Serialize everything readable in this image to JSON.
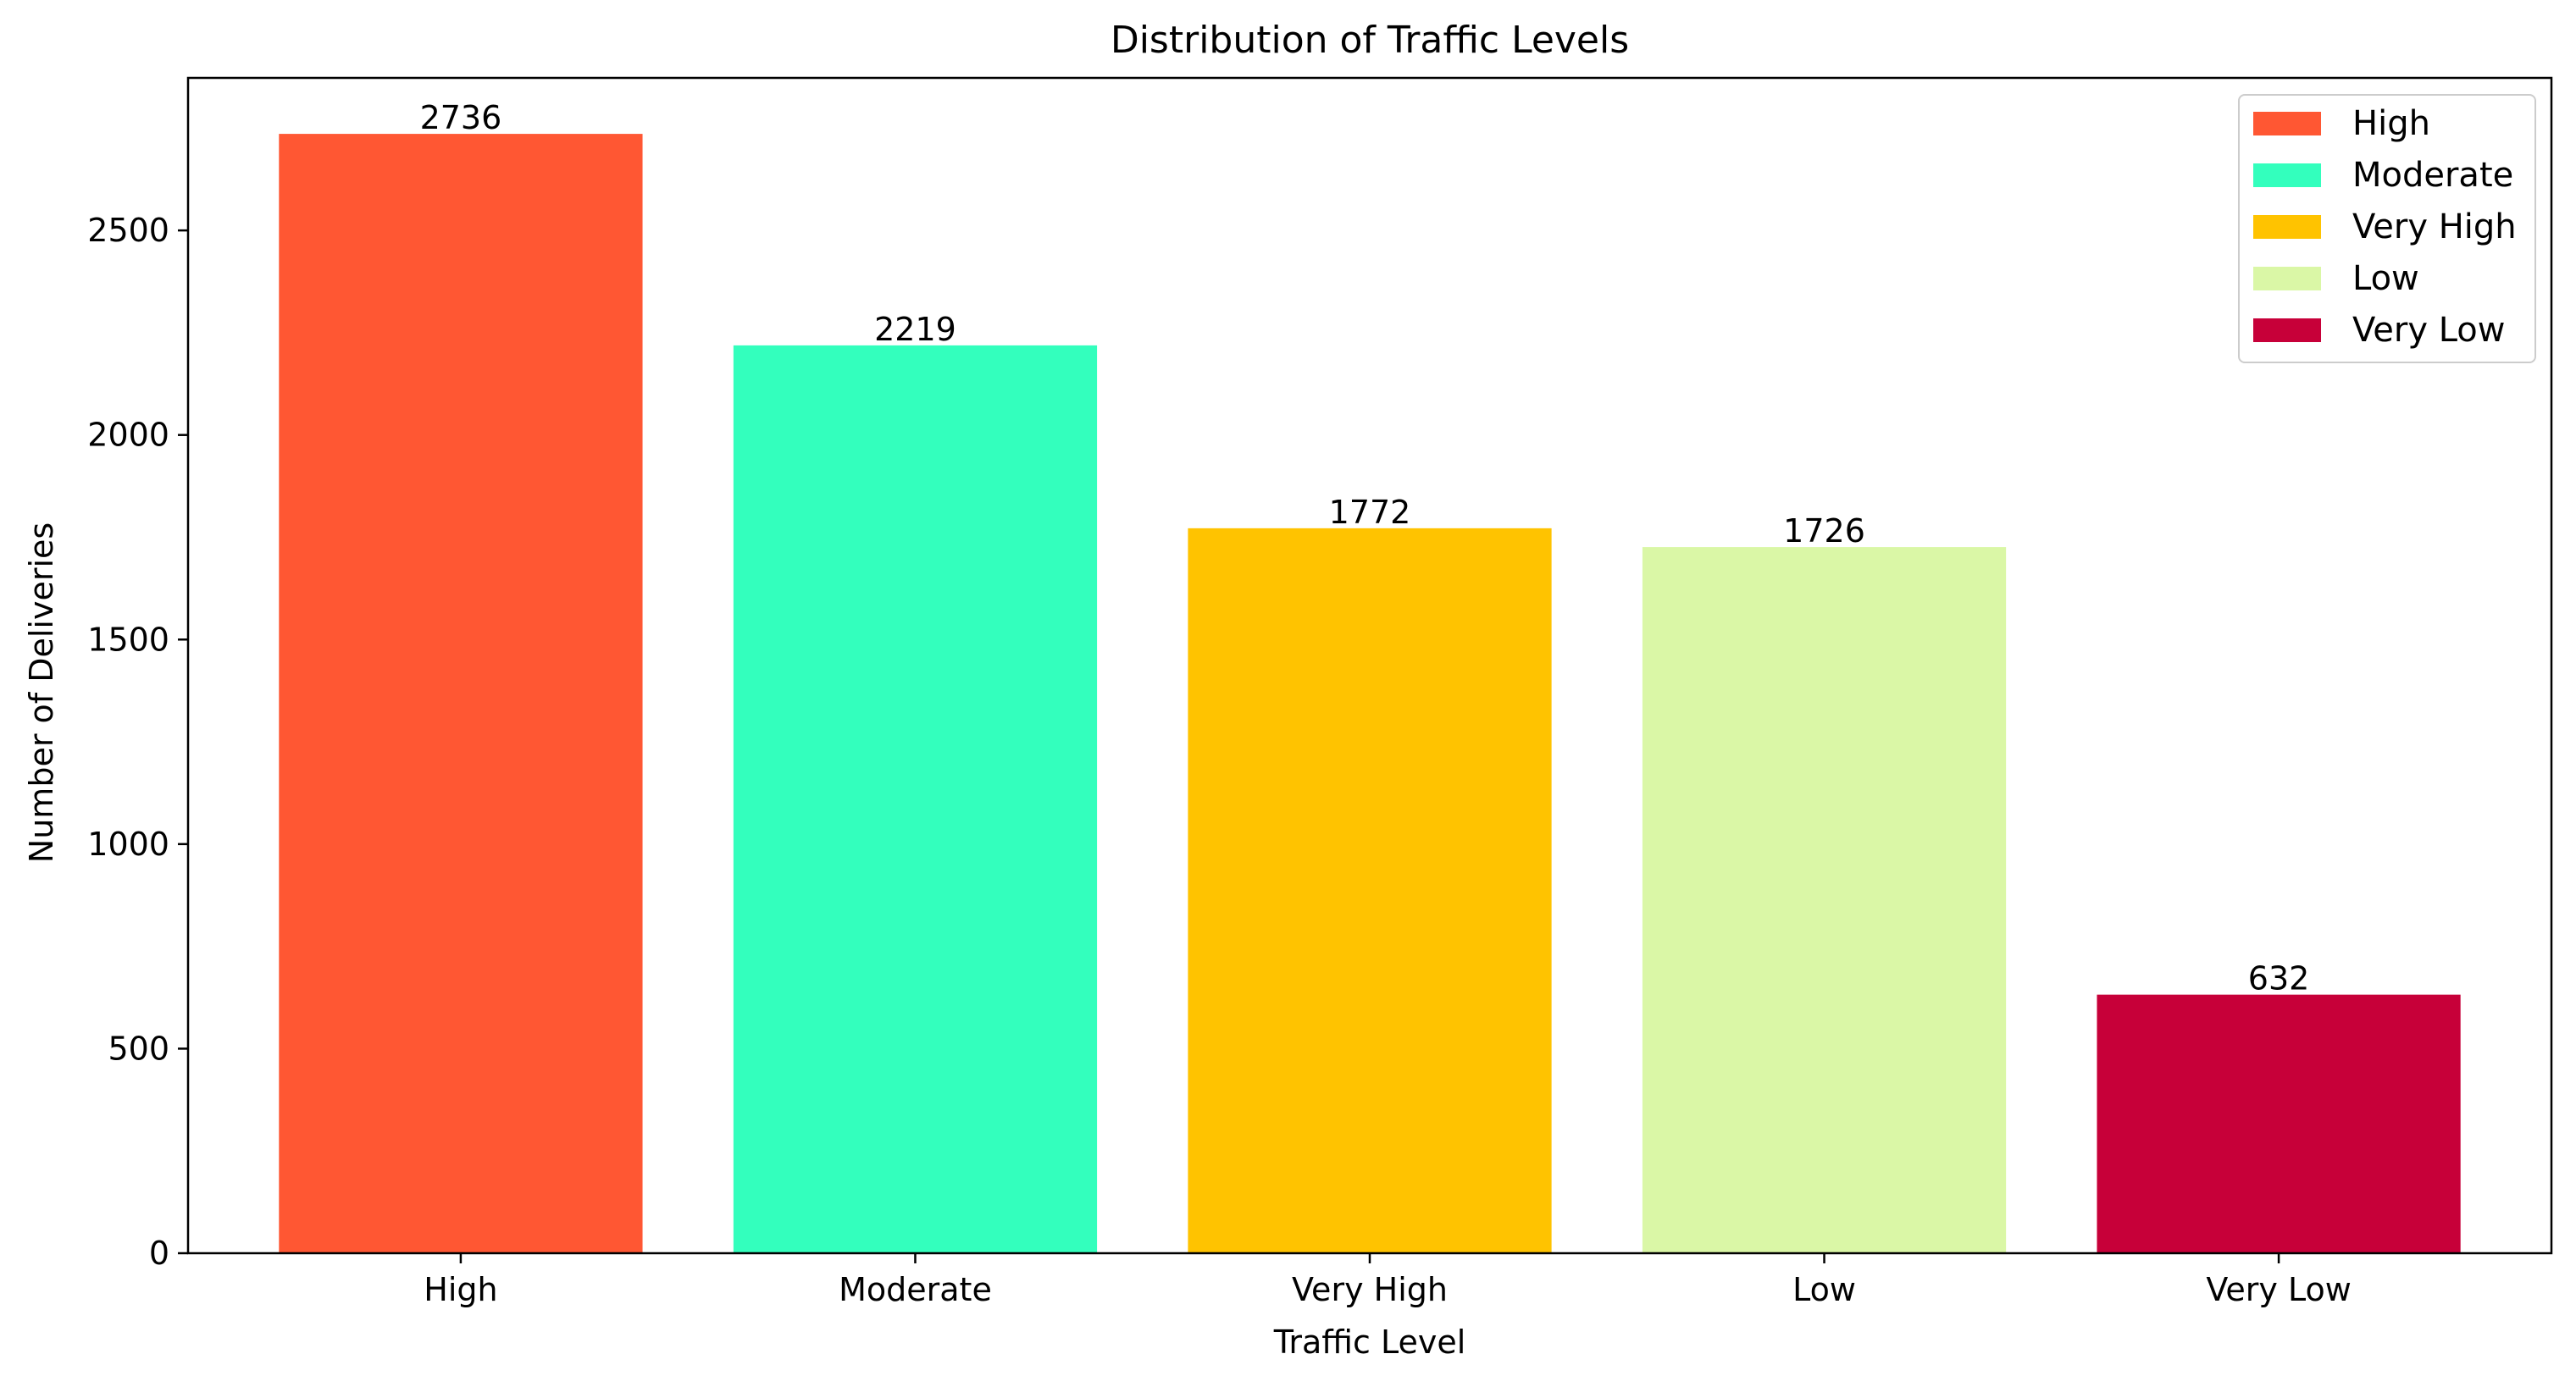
{
  "chart_data": {
    "type": "bar",
    "title": "Distribution of Traffic Levels",
    "xlabel": "Traffic Level",
    "ylabel": "Number of Deliveries",
    "categories": [
      "High",
      "Moderate",
      "Very High",
      "Low",
      "Very Low"
    ],
    "values": [
      2736,
      2219,
      1772,
      1726,
      632
    ],
    "value_labels": [
      "2736",
      "2219",
      "1772",
      "1726",
      "632"
    ],
    "colors": [
      "#ff5733",
      "#33ffbd",
      "#ffc300",
      "#daf7a6",
      "#c70039"
    ],
    "ylim": [
      0,
      2872.8
    ],
    "yticks": [
      0,
      500,
      1000,
      1500,
      2000,
      2500
    ],
    "ytick_labels": [
      "0",
      "500",
      "1000",
      "1500",
      "2000",
      "2500"
    ],
    "grid": false,
    "legend": {
      "placement": "top-right",
      "entries": [
        "High",
        "Moderate",
        "Very High",
        "Low",
        "Very Low"
      ]
    }
  }
}
